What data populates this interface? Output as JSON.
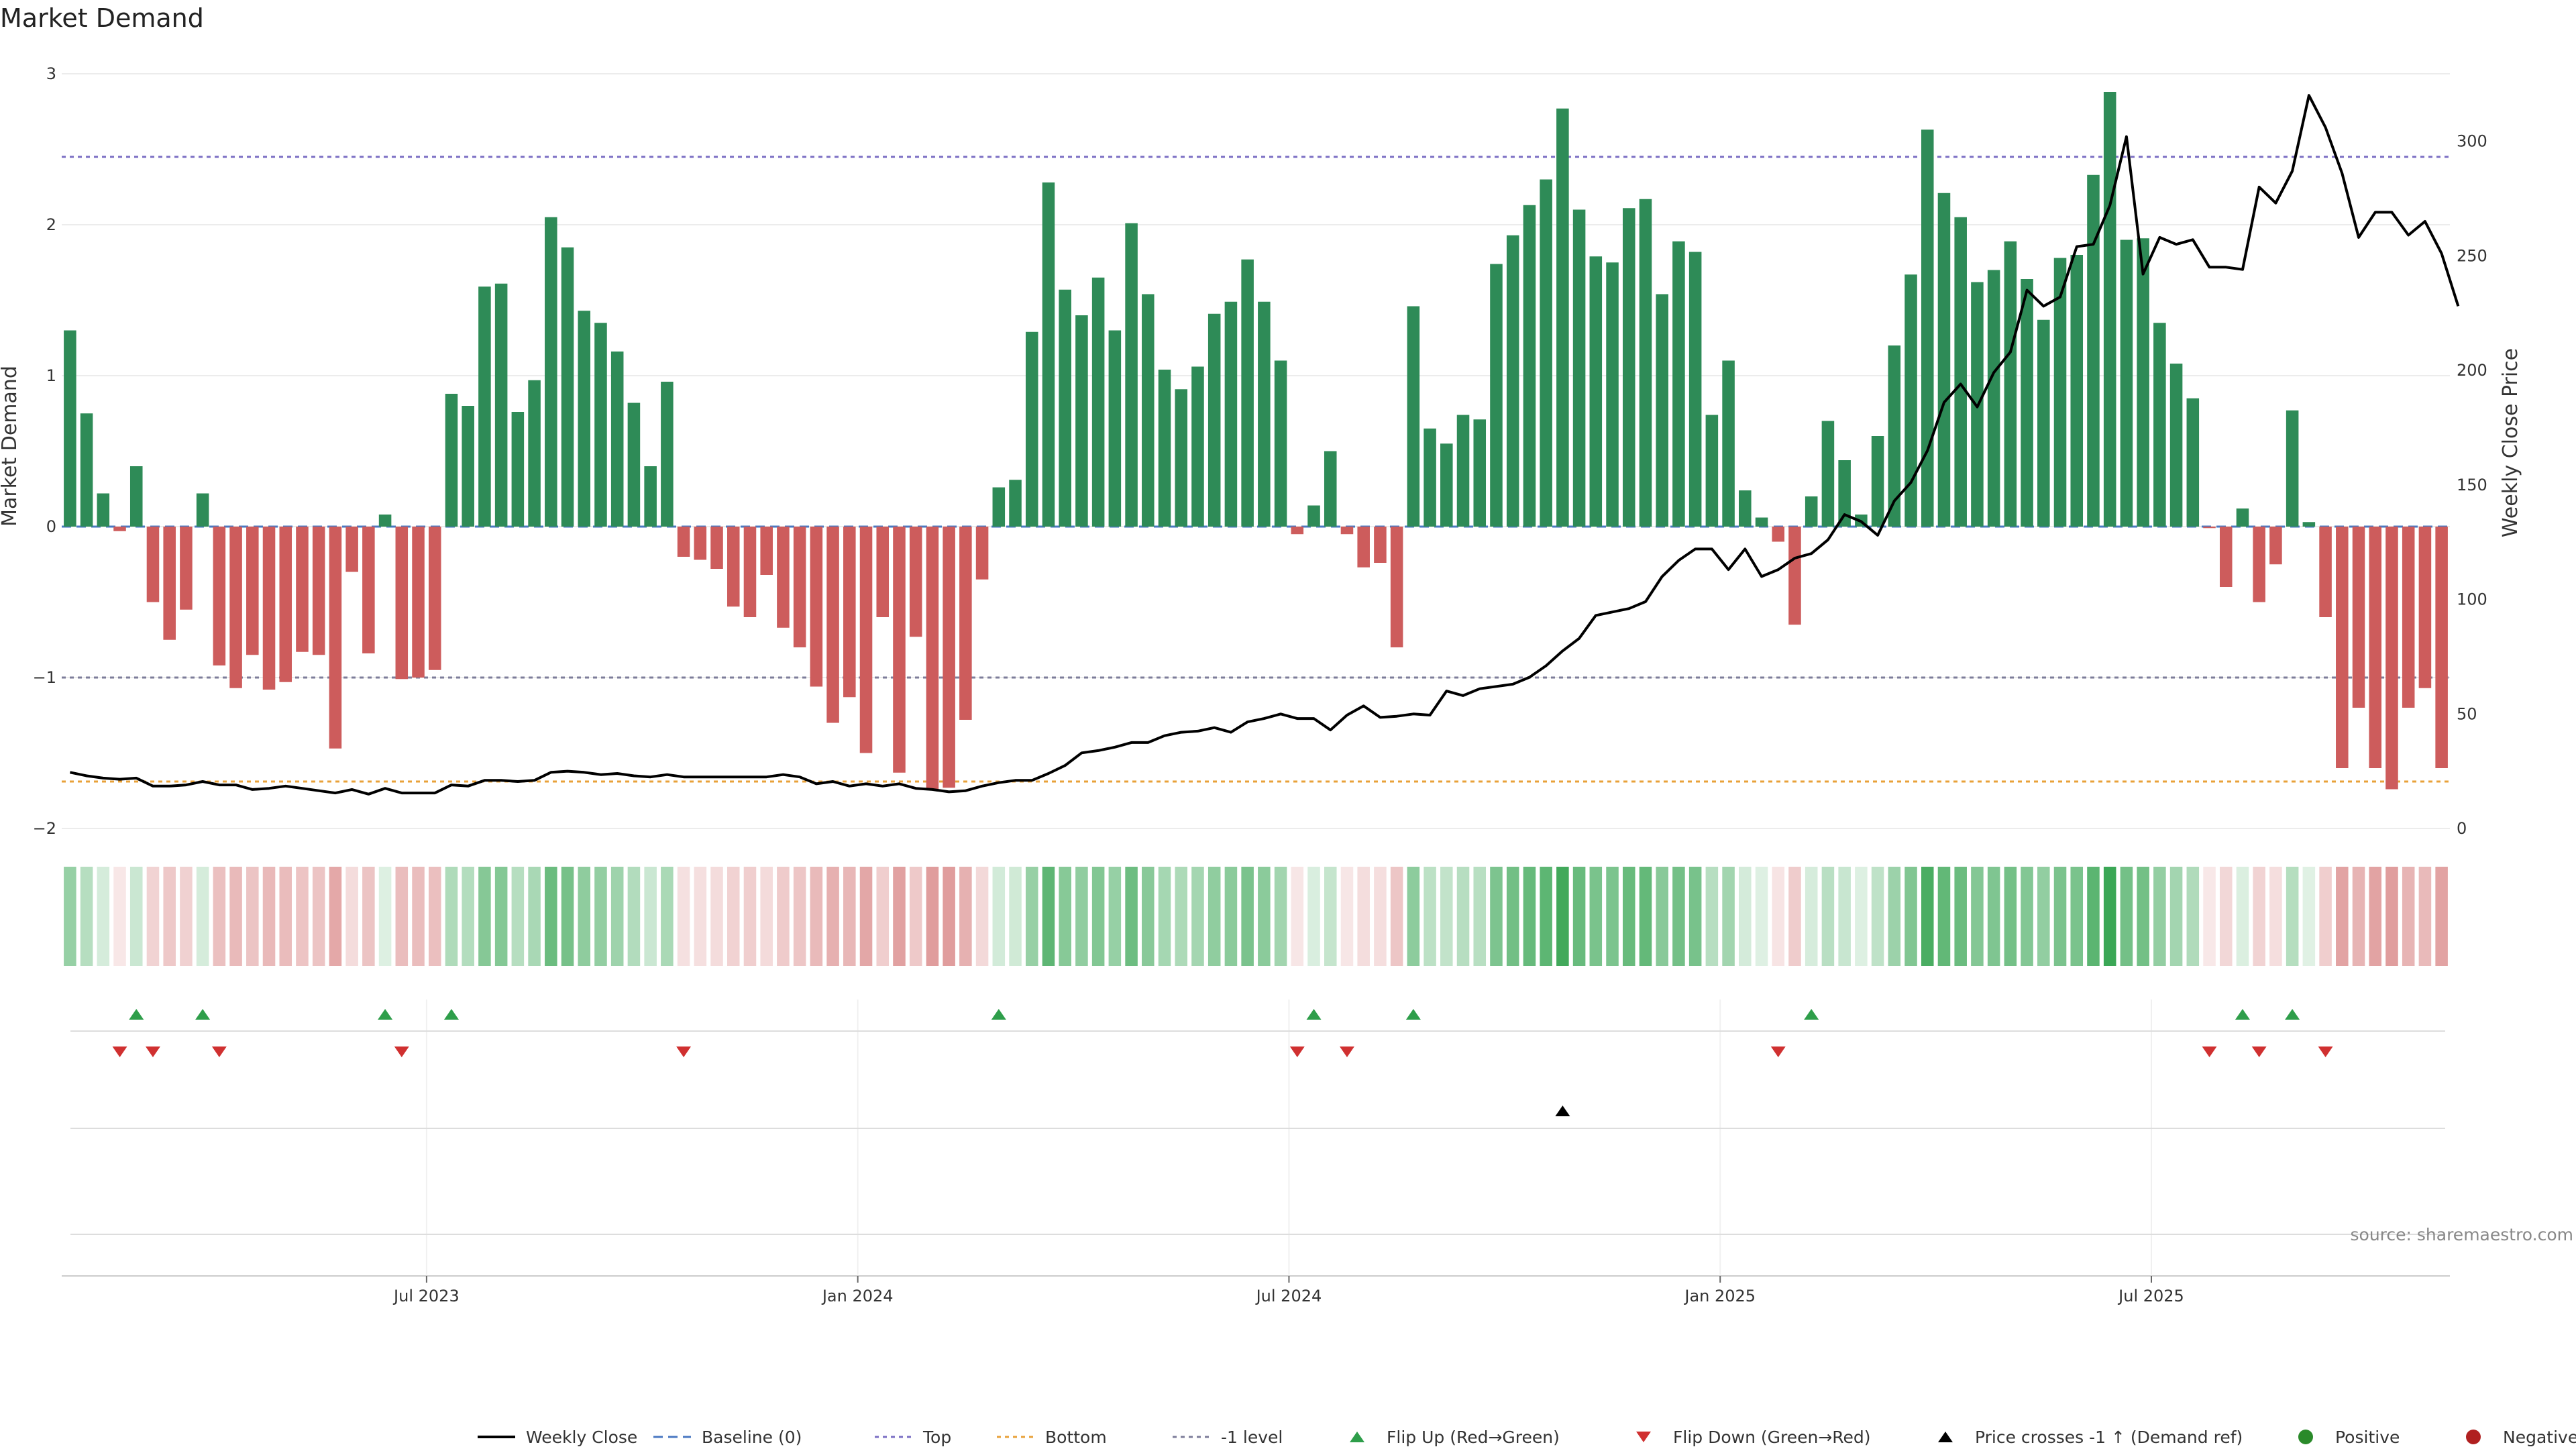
{
  "chart_data": {
    "type": "bar",
    "title": "Market Demand",
    "ylabel_left": "Market Demand",
    "ylabel_right": "Weekly Close Price",
    "ylim_left": [
      -2,
      3
    ],
    "ylim_right": [
      0,
      330
    ],
    "left_ticks": [
      "3",
      "2",
      "1",
      "0",
      "−1",
      "−2"
    ],
    "right_ticks": [
      "300",
      "250",
      "200",
      "150",
      "100",
      "50",
      "0"
    ],
    "x_ticks": [
      "Jul 2023",
      "Jan 2024",
      "Jul 2024",
      "Jan 2025",
      "Jul 2025"
    ],
    "x_tick_weeks": [
      22,
      48,
      74,
      100,
      126
    ],
    "reference_lines": {
      "top": 2.45,
      "minus_one": -1.0,
      "bottom_price": 20.5,
      "baseline": 0
    },
    "colors": {
      "positive": "#2e8b57",
      "negative": "#cd5c5c",
      "price": "#000000",
      "top": "#7b6fc4",
      "bottom": "#e8a23a",
      "minus_one": "#7d7d9a",
      "flip_up": "#2e9e4a",
      "flip_down": "#d03030",
      "cross": "#000000",
      "pos_dot": "#2a8a2a",
      "neg_dot": "#b02020"
    },
    "demand": [
      1.3,
      0.75,
      0.22,
      -0.03,
      0.4,
      -0.5,
      -0.75,
      -0.55,
      0.22,
      -0.92,
      -1.07,
      -0.85,
      -1.08,
      -1.03,
      -0.83,
      -0.85,
      -1.47,
      -0.3,
      -0.84,
      0.08,
      -1.01,
      -1.0,
      -0.95,
      0.88,
      0.8,
      1.59,
      1.61,
      0.76,
      0.97,
      2.05,
      1.85,
      1.43,
      1.35,
      1.16,
      0.82,
      0.4,
      0.96,
      -0.2,
      -0.22,
      -0.28,
      -0.53,
      -0.6,
      -0.32,
      -0.67,
      -0.8,
      -1.06,
      -1.3,
      -1.13,
      -1.5,
      -0.6,
      -1.63,
      -0.73,
      -1.74,
      -1.73,
      -1.28,
      -0.35,
      0.26,
      0.31,
      1.29,
      2.28,
      1.57,
      1.4,
      1.65,
      1.3,
      2.01,
      1.54,
      1.04,
      0.91,
      1.06,
      1.41,
      1.49,
      1.77,
      1.49,
      1.1,
      -0.05,
      0.14,
      0.5,
      -0.05,
      -0.27,
      -0.24,
      -0.8,
      1.46,
      0.65,
      0.55,
      0.74,
      0.71,
      1.74,
      1.93,
      2.13,
      2.3,
      2.77,
      2.1,
      1.79,
      1.75,
      2.11,
      2.17,
      1.54,
      1.89,
      1.82,
      0.74,
      1.1,
      0.24,
      0.06,
      -0.1,
      -0.65,
      0.2,
      0.7,
      0.44,
      0.08,
      0.6,
      1.2,
      1.67,
      2.63,
      2.21,
      2.05,
      1.62,
      1.7,
      1.89,
      1.64,
      1.37,
      1.78,
      1.8,
      2.33,
      2.88,
      1.9,
      1.91,
      1.35,
      1.08,
      0.85,
      -0.01,
      -0.4,
      0.12,
      -0.5,
      -0.25,
      0.77,
      0.03,
      -0.6,
      -1.6,
      -1.2,
      -1.6,
      -1.74,
      -1.2,
      -1.07,
      -1.6
    ],
    "price": [
      24.5,
      23,
      22,
      21.5,
      22,
      18.5,
      18.5,
      19,
      20.5,
      19,
      19,
      17,
      17.5,
      18.5,
      17.5,
      16.5,
      15.5,
      17,
      15,
      17.5,
      15.5,
      15.5,
      15.5,
      19,
      18.5,
      21,
      21,
      20.5,
      21,
      24.5,
      25,
      24.5,
      23.5,
      24,
      23,
      22.5,
      23.5,
      22.5,
      22.5,
      22.5,
      22.5,
      22.5,
      22.5,
      23.5,
      22.5,
      19.5,
      20.5,
      18.5,
      19.5,
      18.5,
      19.5,
      17.5,
      17,
      16,
      16.5,
      18.5,
      20,
      21,
      21,
      24,
      27.5,
      33,
      34,
      35.5,
      37.5,
      37.5,
      40.5,
      42,
      42.5,
      44,
      42,
      46.5,
      48,
      50,
      48,
      48,
      43,
      49.5,
      53.5,
      48.5,
      49,
      50,
      49.5,
      60,
      58,
      61,
      62,
      63,
      66,
      71,
      77.5,
      83,
      93,
      94.5,
      96,
      99,
      110,
      117,
      122,
      122,
      113,
      122,
      110,
      113,
      118,
      120,
      126,
      137,
      134,
      128,
      143,
      151,
      165,
      186,
      194,
      184,
      199,
      208,
      235,
      228,
      232,
      254,
      255,
      272,
      302,
      242,
      258,
      255,
      257,
      245,
      245,
      244,
      280,
      273,
      287,
      320,
      306,
      286,
      258,
      269,
      269,
      259,
      265,
      251,
      228
    ],
    "flip_up_weeks": [
      4,
      8,
      19,
      23,
      56,
      75,
      81,
      105,
      131,
      134
    ],
    "flip_down_weeks": [
      3,
      5,
      9,
      20,
      37,
      74,
      77,
      103,
      129,
      132,
      136
    ],
    "price_cross_weeks": [
      90
    ],
    "legend": [
      {
        "key": "weekly_close",
        "label": "Weekly Close"
      },
      {
        "key": "baseline",
        "label": "Baseline (0)"
      },
      {
        "key": "top",
        "label": "Top"
      },
      {
        "key": "bottom",
        "label": "Bottom"
      },
      {
        "key": "minus_one",
        "label": "-1 level"
      },
      {
        "key": "flip_up",
        "label": "Flip Up (Red→Green)"
      },
      {
        "key": "flip_down",
        "label": "Flip Down (Green→Red)"
      },
      {
        "key": "cross",
        "label": "Price crosses -1 ↑ (Demand ref)"
      },
      {
        "key": "positive",
        "label": "Positive"
      },
      {
        "key": "negative",
        "label": "Negative"
      }
    ],
    "source": "source: sharemaestro.com"
  }
}
